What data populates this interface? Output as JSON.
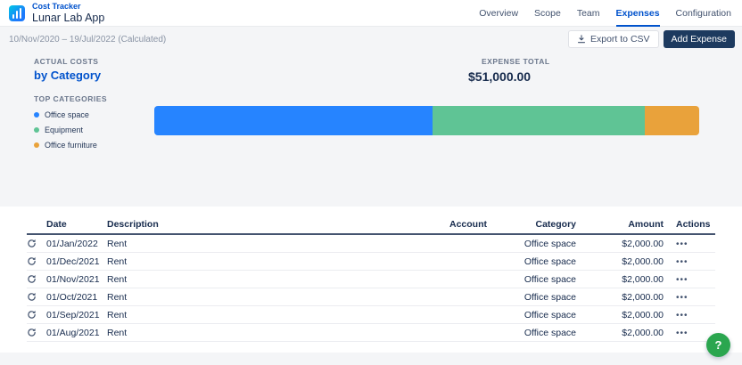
{
  "header": {
    "app_label": "Cost Tracker",
    "title": "Lunar Lab App",
    "tabs": [
      {
        "label": "Overview",
        "active": false
      },
      {
        "label": "Scope",
        "active": false
      },
      {
        "label": "Team",
        "active": false
      },
      {
        "label": "Expenses",
        "active": true
      },
      {
        "label": "Configuration",
        "active": false
      }
    ]
  },
  "toolbar": {
    "date_range": "10/Nov/2020 – 19/Jul/2022 (Calculated)",
    "export_button": "Export to CSV",
    "add_expense_button": "Add Expense"
  },
  "summary": {
    "section_label": "ACTUAL COSTS",
    "section_title": "by Category",
    "total_label": "EXPENSE TOTAL",
    "total_value": "$51,000.00",
    "legend_label": "TOP CATEGORIES"
  },
  "chart_data": {
    "type": "bar",
    "variant": "horizontal-stacked",
    "title": "Actual Costs by Category",
    "total": 51000,
    "total_display": "$51,000.00",
    "legend_position": "left",
    "segments": [
      {
        "name": "Office space",
        "value": 26000,
        "percent": 51,
        "color": "#2684FF"
      },
      {
        "name": "Equipment",
        "value": 20000,
        "percent": 39,
        "color": "#5FC495"
      },
      {
        "name": "Office furniture",
        "value": 5000,
        "percent": 10,
        "color": "#E9A23B"
      }
    ]
  },
  "table": {
    "headers": {
      "date": "Date",
      "description": "Description",
      "account": "Account",
      "category": "Category",
      "amount": "Amount",
      "actions": "Actions"
    },
    "rows": [
      {
        "date": "01/Jan/2022",
        "description": "Rent",
        "account": "",
        "category": "Office space",
        "amount": "$2,000.00"
      },
      {
        "date": "01/Dec/2021",
        "description": "Rent",
        "account": "",
        "category": "Office space",
        "amount": "$2,000.00"
      },
      {
        "date": "01/Nov/2021",
        "description": "Rent",
        "account": "",
        "category": "Office space",
        "amount": "$2,000.00"
      },
      {
        "date": "01/Oct/2021",
        "description": "Rent",
        "account": "",
        "category": "Office space",
        "amount": "$2,000.00"
      },
      {
        "date": "01/Sep/2021",
        "description": "Rent",
        "account": "",
        "category": "Office space",
        "amount": "$2,000.00"
      },
      {
        "date": "01/Aug/2021",
        "description": "Rent",
        "account": "",
        "category": "Office space",
        "amount": "$2,000.00"
      }
    ]
  },
  "icons": {
    "more": "•••",
    "help": "?"
  },
  "colors": {
    "accent": "#0052CC",
    "add_button": "#1D3A5F",
    "help_button": "#2BA64F"
  }
}
